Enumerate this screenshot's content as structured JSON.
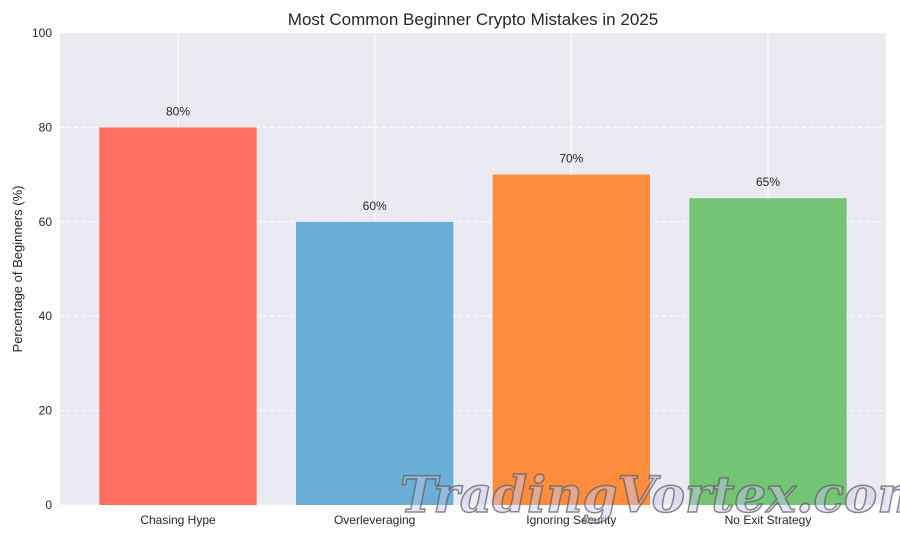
{
  "chart_data": {
    "type": "bar",
    "title": "Most Common Beginner Crypto Mistakes in 2025",
    "xlabel": "",
    "ylabel": "Percentage of Beginners (%)",
    "categories": [
      "Chasing Hype",
      "Overleveraging",
      "Ignoring Security",
      "No Exit Strategy"
    ],
    "values": [
      80,
      60,
      70,
      65
    ],
    "data_labels": [
      "80%",
      "60%",
      "70%",
      "65%"
    ],
    "colors": [
      "#ff6f61",
      "#6baed6",
      "#fd8d3c",
      "#74c476"
    ],
    "ylim": [
      0,
      100
    ],
    "yticks": [
      0,
      20,
      40,
      60,
      80,
      100
    ],
    "grid": true,
    "background": "#eaeaf2"
  },
  "watermark": "TradingVortex.com"
}
